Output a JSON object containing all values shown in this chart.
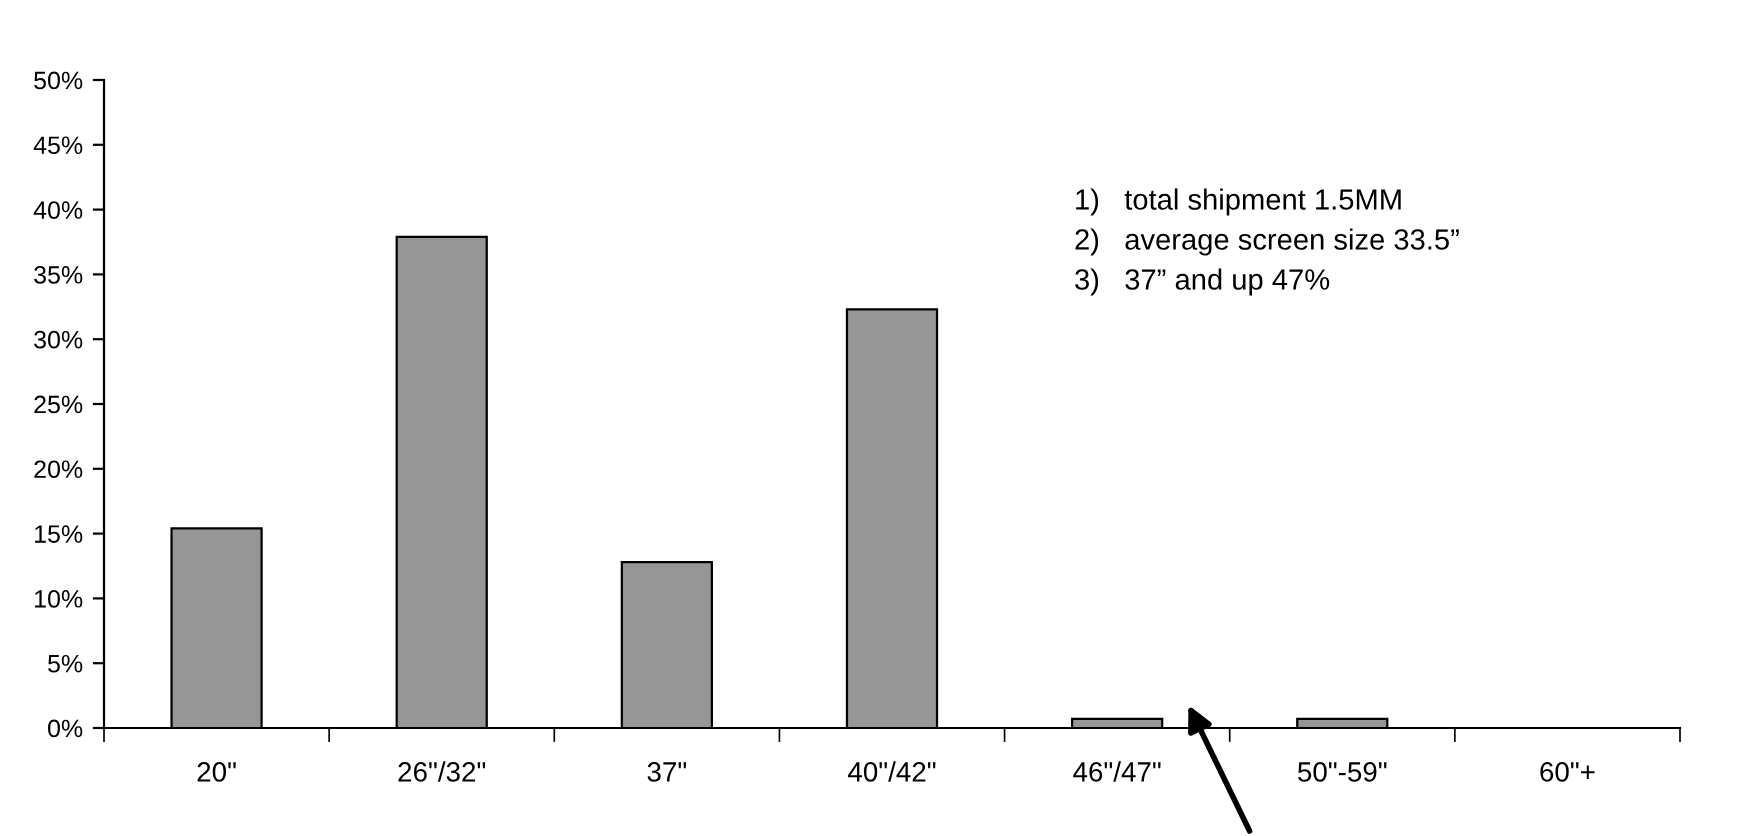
{
  "chart_data": {
    "type": "bar",
    "categories": [
      "20\"",
      "26\"/32\"",
      "37\"",
      "40\"/42\"",
      "46\"/47\"",
      "50\"-59\"",
      "60\"+"
    ],
    "values": [
      15.4,
      37.9,
      12.8,
      32.3,
      0.7,
      0.7,
      0
    ],
    "color": "#969696",
    "ylim": [
      0,
      50
    ],
    "yticks": [
      {
        "value": 0,
        "label": "0%"
      },
      {
        "value": 5,
        "label": "5%"
      },
      {
        "value": 10,
        "label": "10%"
      },
      {
        "value": 15,
        "label": "15%"
      },
      {
        "value": 20,
        "label": "20%"
      },
      {
        "value": 25,
        "label": "25%"
      },
      {
        "value": 30,
        "label": "30%"
      },
      {
        "value": 35,
        "label": "35%"
      },
      {
        "value": 40,
        "label": "40%"
      },
      {
        "value": 45,
        "label": "45%"
      },
      {
        "value": 50,
        "label": "50%"
      }
    ],
    "grid": false,
    "legend": false,
    "annotations": [
      "1)   total shipment 1.5MM",
      "2)   average screen size 33.5”",
      "3)   37” and up 47%"
    ]
  }
}
